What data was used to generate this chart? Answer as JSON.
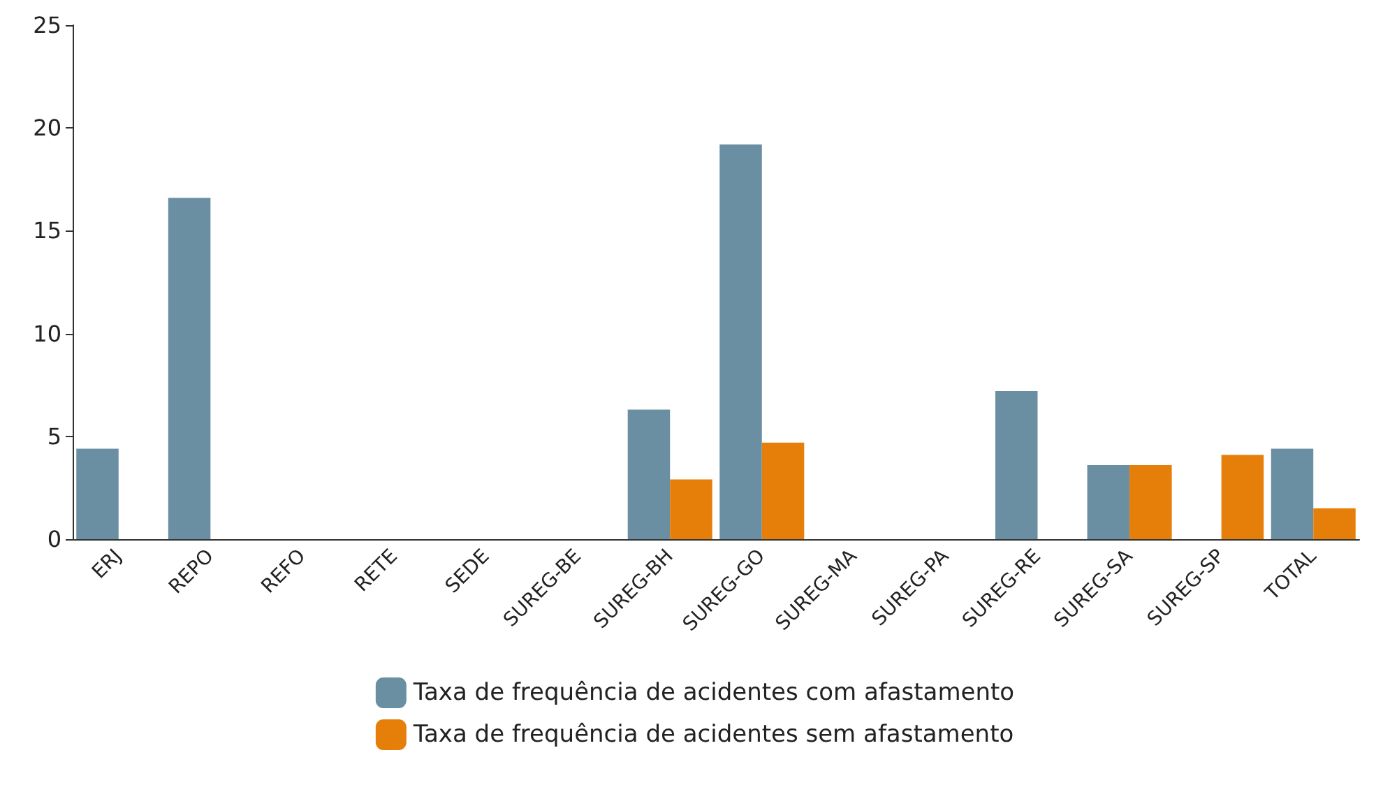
{
  "chart_data": {
    "type": "bar",
    "categories": [
      "ERJ",
      "REPO",
      "REFO",
      "RETE",
      "SEDE",
      "SUREG-BE",
      "SUREG-BH",
      "SUREG-GO",
      "SUREG-MA",
      "SUREG-PA",
      "SUREG-RE",
      "SUREG-SA",
      "SUREG-SP",
      "TOTAL"
    ],
    "series": [
      {
        "name": "Taxa de frequência de acidentes com afastamento",
        "color": "#6b8fa2",
        "values": [
          4.4,
          16.6,
          0,
          0,
          0,
          0,
          6.3,
          19.2,
          0,
          0,
          7.2,
          3.6,
          0,
          4.4
        ]
      },
      {
        "name": "Taxa de frequência de acidentes sem afastamento",
        "color": "#e67e0a",
        "values": [
          0,
          0,
          0,
          0,
          0,
          0,
          2.9,
          4.7,
          0,
          0,
          0,
          3.6,
          4.1,
          1.5
        ]
      }
    ],
    "ylim": [
      0,
      25
    ],
    "yticks": [
      0,
      5,
      10,
      15,
      20,
      25
    ],
    "grid": false,
    "legend": "bottom"
  }
}
